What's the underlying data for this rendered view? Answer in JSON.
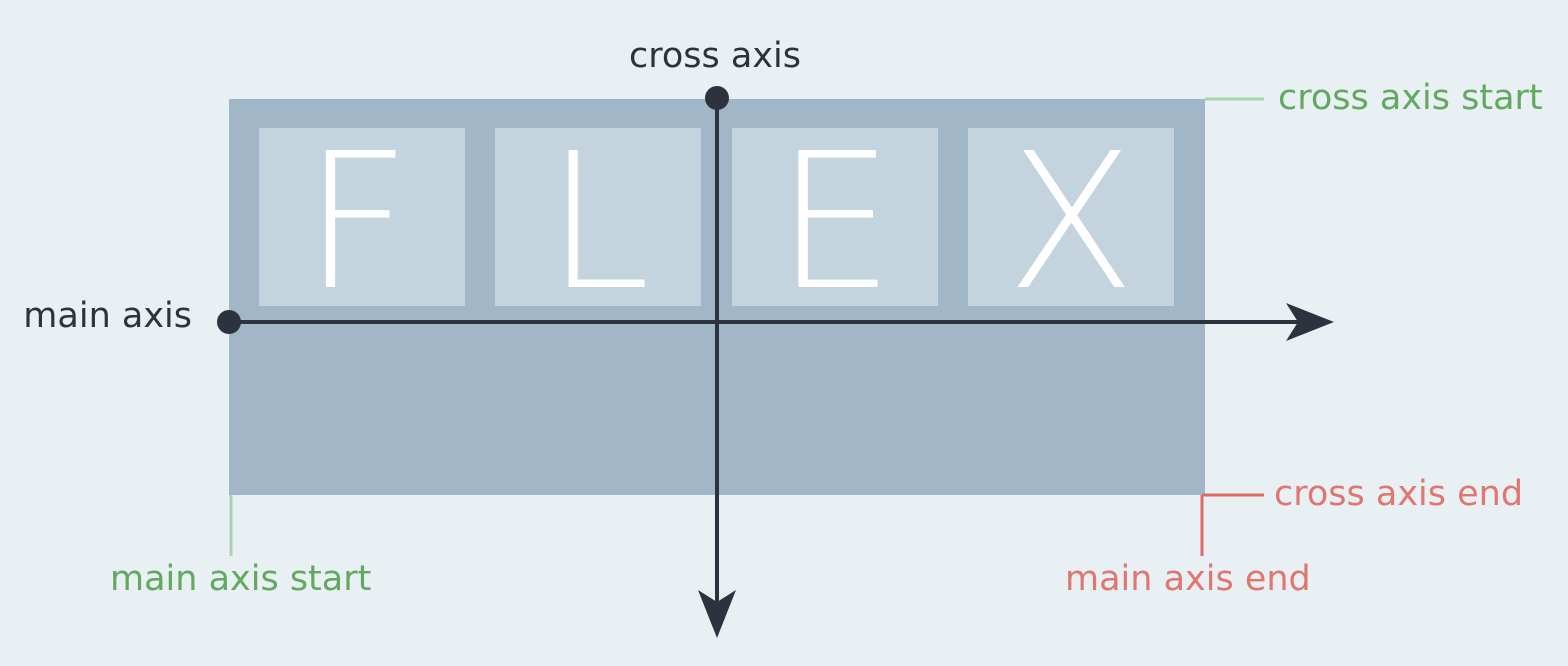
{
  "diagram": {
    "items": [
      {
        "letter": "F"
      },
      {
        "letter": "L"
      },
      {
        "letter": "E"
      },
      {
        "letter": "X"
      }
    ],
    "axes": {
      "main_axis_label": "main axis",
      "cross_axis_label": "cross axis"
    },
    "edges": {
      "main_axis_start": "main axis start",
      "main_axis_end": "main axis end",
      "cross_axis_start": "cross axis start",
      "cross_axis_end": "cross axis end"
    }
  },
  "colors": {
    "background": "#e9f0f3",
    "container": "#a1b7c7",
    "item": "#c3d4de",
    "letter": "#ffffff",
    "axis": "#2d333e",
    "start": "#61a95e",
    "start_line": "#a8d6ac",
    "end": "#e07670",
    "end_line": "#e16864"
  }
}
